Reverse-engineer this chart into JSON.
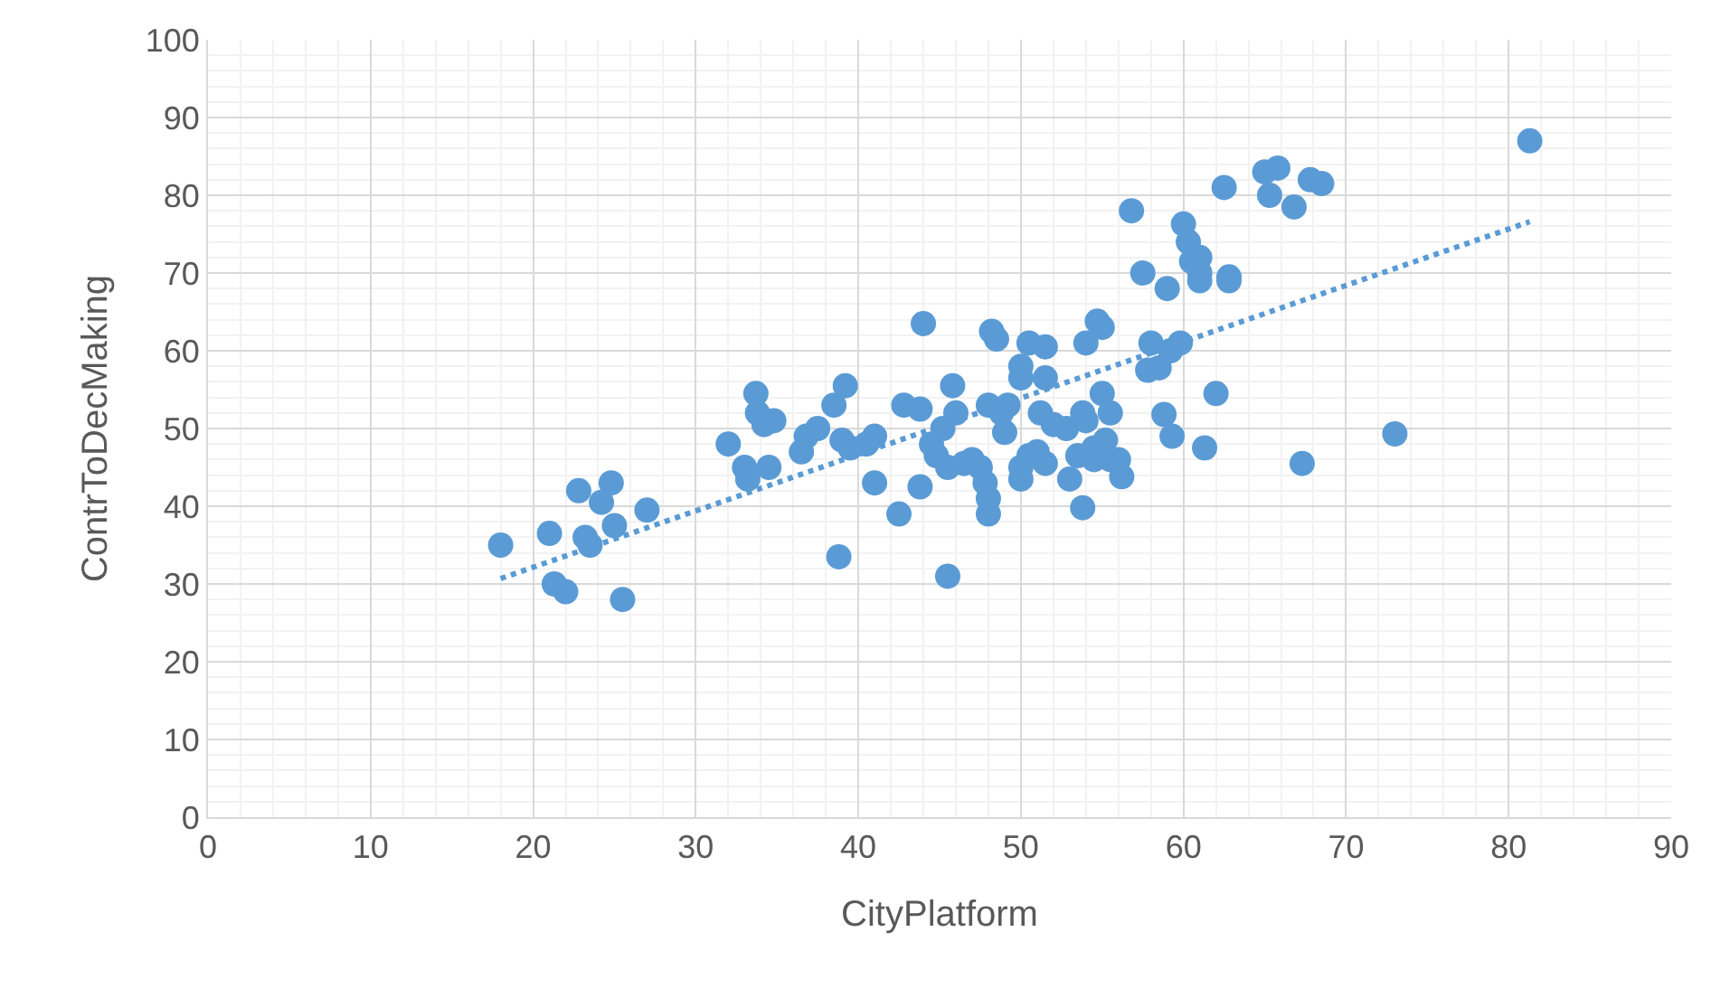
{
  "chart_data": {
    "type": "scatter",
    "xlabel": "CityPlatform",
    "ylabel": "ContrToDecMaking",
    "xlim": [
      0,
      90
    ],
    "xticks": [
      0,
      10,
      20,
      30,
      40,
      50,
      60,
      70,
      80,
      90
    ],
    "ylim": [
      0,
      100
    ],
    "yticks": [
      0,
      10,
      20,
      30,
      40,
      50,
      60,
      70,
      80,
      90,
      100
    ],
    "grid": true,
    "marker": "circle",
    "x": [
      18,
      21,
      21.3,
      22,
      22.8,
      23.2,
      23.5,
      24.2,
      24.8,
      25,
      25.5,
      27,
      32,
      33,
      33.2,
      33.7,
      33.8,
      34.2,
      34.5,
      34.8,
      36.5,
      36.8,
      37.5,
      38.5,
      38.8,
      39,
      39.2,
      39.5,
      40.5,
      41,
      41,
      42.5,
      42.8,
      43.8,
      43.8,
      44,
      44.5,
      44.8,
      45.2,
      45.5,
      45.5,
      45.8,
      46,
      46.5,
      47,
      47.5,
      47.8,
      48,
      48,
      48,
      48.2,
      48.5,
      48.8,
      49,
      49.2,
      50,
      50,
      50,
      50,
      50.5,
      50.5,
      51,
      51.2,
      51.5,
      51.5,
      51.5,
      52,
      52.8,
      53,
      53.5,
      53.8,
      53.8,
      54,
      54,
      54.5,
      54.5,
      54.7,
      55,
      55,
      55.2,
      55.5,
      55.5,
      56,
      56.2,
      56.8,
      57.5,
      57.8,
      58,
      58.5,
      58.8,
      59,
      59.2,
      59.3,
      59.8,
      60,
      60.3,
      60.5,
      61,
      61,
      61,
      61.3,
      62,
      62.5,
      62.8,
      62.8,
      65,
      65.3,
      65.8,
      66.8,
      67.3,
      67.8,
      68.5,
      73,
      81.3
    ],
    "series": [
      {
        "color": "#5b9bd5",
        "values": [
          35,
          36.5,
          30,
          29,
          42,
          36,
          35,
          40.5,
          43,
          37.5,
          28,
          39.5,
          48,
          45,
          43.5,
          54.5,
          52,
          50.5,
          45,
          51,
          47,
          49,
          50,
          53,
          33.5,
          48.5,
          55.5,
          47.5,
          48,
          49,
          43,
          39,
          53,
          52.5,
          42.5,
          63.5,
          48,
          46.5,
          50,
          31,
          45,
          55.5,
          52,
          45.5,
          46,
          45,
          43,
          41,
          39,
          53,
          62.5,
          61.5,
          52,
          49.5,
          53,
          56.5,
          58,
          45,
          43.5,
          61,
          46.5,
          47,
          52,
          45.5,
          60.5,
          56.5,
          50.5,
          50,
          43.5,
          46.5,
          52,
          39.8,
          61,
          51,
          46,
          47.5,
          63.8,
          54.5,
          63,
          48.5,
          46,
          52,
          46,
          43.8,
          78,
          70,
          57.5,
          61,
          57.8,
          51.8,
          68,
          60,
          49,
          61,
          76.3,
          74,
          71.5,
          70,
          72,
          69,
          47.5,
          54.5,
          81,
          69,
          69.5,
          83,
          80,
          83.5,
          78.5,
          45.5,
          82,
          81.5,
          49.3,
          87
        ]
      },
      {
        "type": "line",
        "color": "#5b9bd5",
        "line_style": "dotted",
        "marker": "none",
        "x": [
          18,
          81.3
        ],
        "values": [
          30.7,
          76.6
        ]
      }
    ]
  }
}
